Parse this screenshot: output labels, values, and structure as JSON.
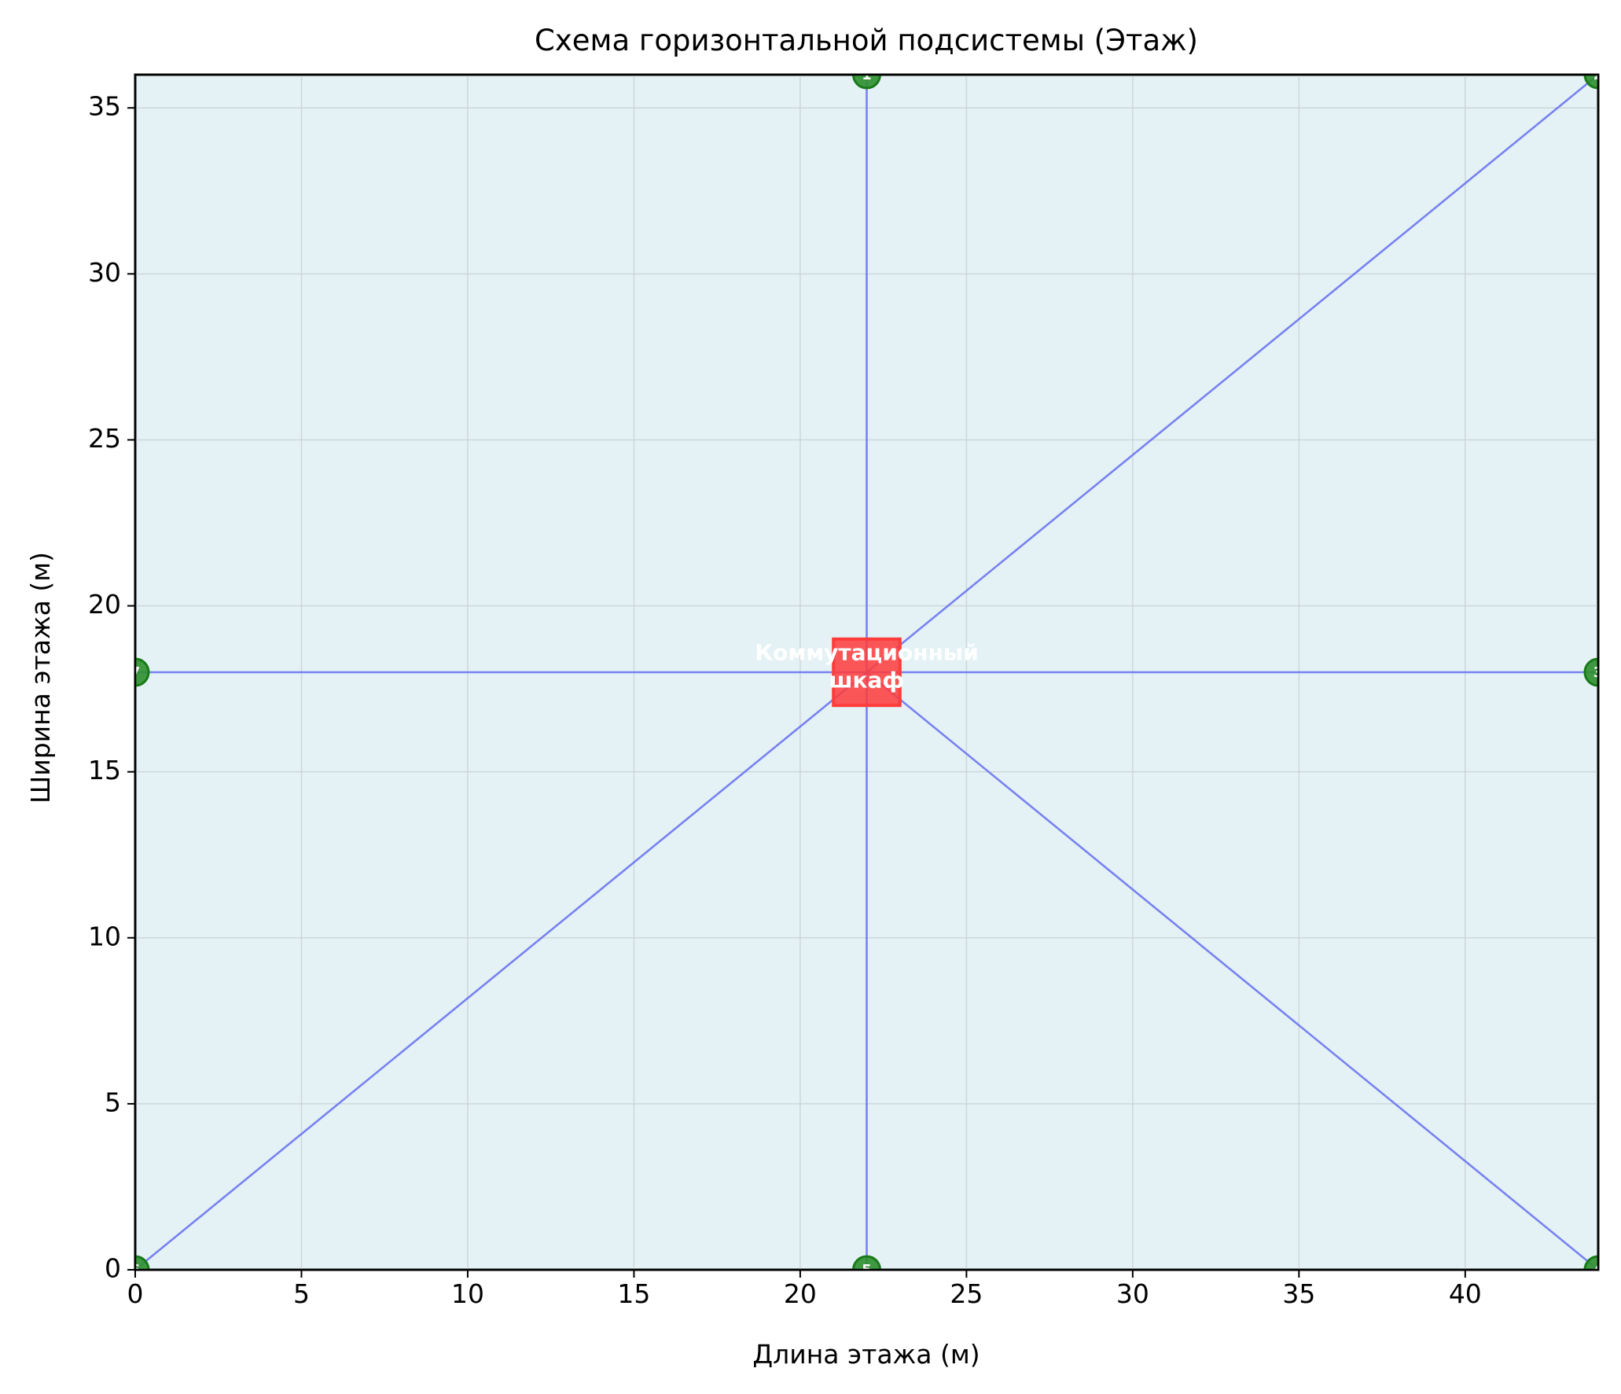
{
  "chart_data": {
    "type": "scatter",
    "title": "Схема горизонтальной подсистемы (Этаж)",
    "xlabel": "Длина этажа (м)",
    "ylabel": "Ширина этажа (м)",
    "xlim": [
      0,
      44
    ],
    "ylim": [
      0,
      36
    ],
    "xticks": [
      0,
      5,
      10,
      15,
      20,
      25,
      30,
      35,
      40
    ],
    "yticks": [
      0,
      5,
      10,
      15,
      20,
      25,
      30,
      35
    ],
    "grid": true,
    "floor": {
      "x": [
        0,
        44
      ],
      "y": [
        0,
        36
      ]
    },
    "cabinet": {
      "x": 22,
      "y": 18,
      "width": 2,
      "height": 2,
      "label_lines": [
        "Коммутационный",
        "шкаф"
      ]
    },
    "outlets": [
      {
        "id": "1",
        "x": 22,
        "y": 36
      },
      {
        "id": "2",
        "x": 44,
        "y": 36
      },
      {
        "id": "3",
        "x": 44,
        "y": 18
      },
      {
        "id": "4",
        "x": 44,
        "y": 0
      },
      {
        "id": "5",
        "x": 22,
        "y": 0
      },
      {
        "id": "6",
        "x": 0,
        "y": 0
      },
      {
        "id": "7",
        "x": 0,
        "y": 18
      }
    ],
    "colors": {
      "floor_fill": "#e4f2f6",
      "grid": "#c8cfd2",
      "cable": "#6b75f0",
      "cabinet_fill": "#ff3b3b",
      "cabinet_edge": "#ff3b3b",
      "outlet_fill": "#2c8f2c",
      "outlet_edge": "#197a19",
      "outlet_label": "#ffffff",
      "cabinet_label": "#ffffff"
    }
  }
}
